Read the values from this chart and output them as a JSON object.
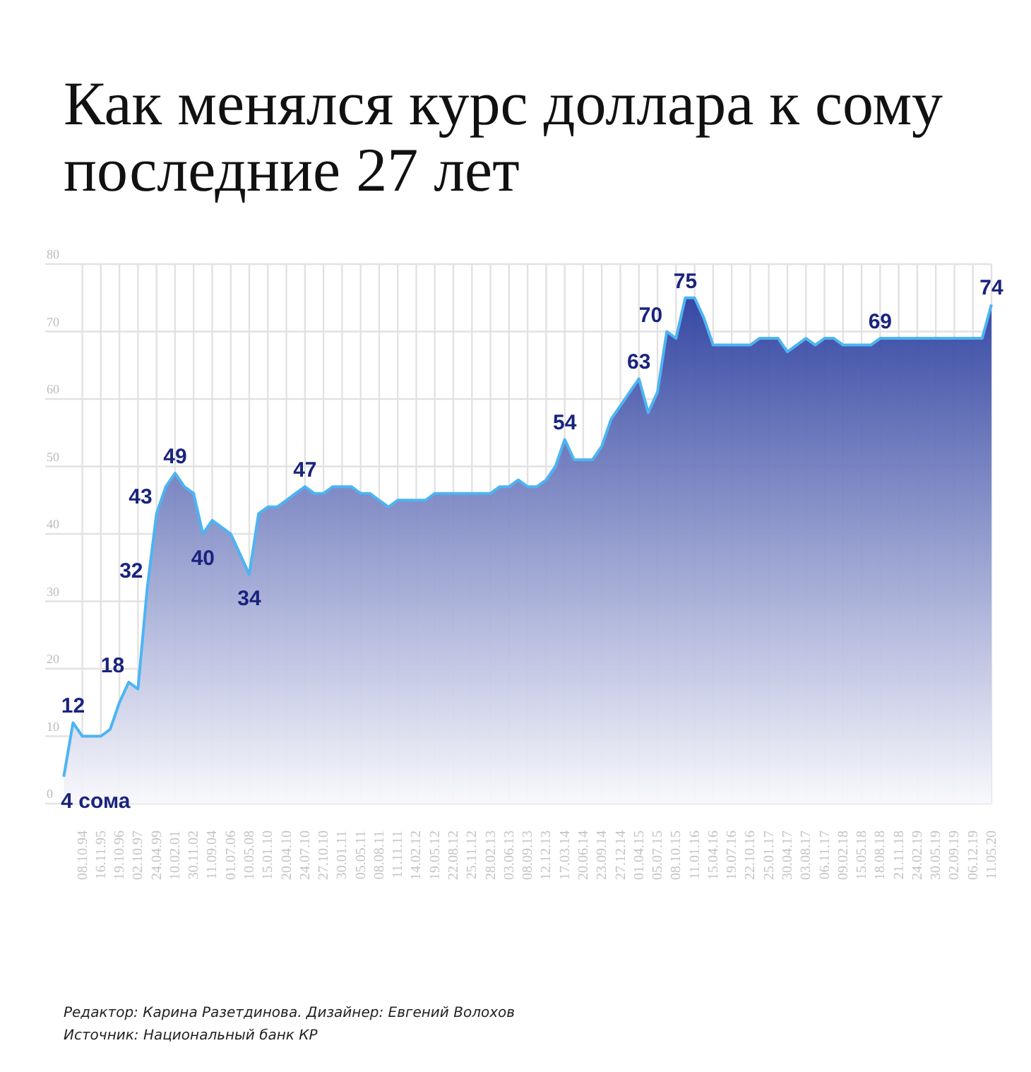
{
  "chart_data": {
    "type": "area",
    "title": "Как менялся курс доллара к сому последние 27 лет",
    "categories": [
      null,
      null,
      "08.10.94",
      null,
      "16.11.95",
      null,
      "19.10.96",
      null,
      "02.10.97",
      null,
      "24.04.99",
      null,
      "10.02.01",
      null,
      "30.11.02",
      null,
      "11.09.04",
      null,
      "01.07.06",
      null,
      "10.05.08",
      null,
      "15.01.10",
      null,
      "20.04.10",
      null,
      "24.07.10",
      null,
      "27.10.10",
      null,
      "30.01.11",
      null,
      "05.05.11",
      null,
      "08.08.11",
      null,
      "11.11.11",
      null,
      "14.02.12",
      null,
      "19.05.12",
      null,
      "22.08.12",
      null,
      "25.11.12",
      null,
      "28.02.13",
      null,
      "03.06.13",
      null,
      "08.09.13",
      null,
      "12.12.13",
      null,
      "17.03.14",
      null,
      "20.06.14",
      null,
      "23.09.14",
      null,
      "27.12.14",
      null,
      "01.04.15",
      null,
      "05.07.15",
      null,
      "08.10.15",
      null,
      "11.01.16",
      null,
      "15.04.16",
      null,
      "19.07.16",
      null,
      "22.10.16",
      null,
      "25.01.17",
      null,
      "30.04.17",
      null,
      "03.08.17",
      null,
      "06.11.17",
      null,
      "09.02.18",
      null,
      "15.05.18",
      null,
      "18.08.18",
      null,
      "21.11.18",
      null,
      "24.02.19",
      null,
      "30.05.19",
      null,
      "02.09.19",
      null,
      "06.12.19",
      null,
      "11.05.20"
    ],
    "series": [
      {
        "color": "#4db4f2",
        "values": [
          4,
          12,
          10,
          10,
          10,
          11,
          15,
          18,
          17,
          32,
          43,
          47,
          49,
          47,
          46,
          40,
          42,
          41,
          40,
          37,
          34,
          43,
          44,
          44,
          45,
          46,
          47,
          46,
          46,
          47,
          47,
          47,
          46,
          46,
          45,
          44,
          45,
          45,
          45,
          45,
          46,
          46,
          46,
          46,
          46,
          46,
          46,
          47,
          47,
          48,
          47,
          47,
          48,
          50,
          54,
          51,
          51,
          51,
          53,
          57,
          59,
          61,
          63,
          58,
          61,
          70,
          69,
          75,
          75,
          72,
          68,
          68,
          68,
          68,
          68,
          69,
          69,
          69,
          67,
          68,
          69,
          68,
          69,
          69,
          68,
          68,
          68,
          68,
          69,
          69,
          69,
          69,
          69,
          69,
          69,
          69,
          69,
          69,
          69,
          69,
          74
        ],
        "value_labels": [
          "4 сома",
          "12",
          null,
          null,
          null,
          null,
          null,
          "18",
          null,
          "32",
          "43",
          null,
          "49",
          null,
          null,
          "40",
          null,
          null,
          null,
          null,
          "34",
          null,
          null,
          null,
          null,
          null,
          "47",
          null,
          null,
          null,
          null,
          null,
          null,
          null,
          null,
          null,
          null,
          null,
          null,
          null,
          null,
          null,
          null,
          null,
          null,
          null,
          null,
          null,
          null,
          null,
          null,
          null,
          null,
          null,
          "54",
          null,
          null,
          null,
          null,
          null,
          null,
          null,
          "63",
          null,
          null,
          "70",
          null,
          "75",
          null,
          null,
          null,
          null,
          null,
          null,
          null,
          null,
          null,
          null,
          null,
          null,
          null,
          null,
          null,
          null,
          null,
          null,
          null,
          null,
          "69",
          null,
          null,
          null,
          null,
          null,
          null,
          null,
          null,
          null,
          null,
          null,
          "74"
        ]
      }
    ],
    "ylim": [
      0,
      80
    ],
    "yticks": [
      0,
      10,
      20,
      30,
      40,
      50,
      60,
      70,
      80
    ],
    "grid": true,
    "annotations": [
      "Редактор: Карина Разетдинова. Дизайнер: Евгений Волохов",
      "Источник: Национальный банк КР"
    ]
  }
}
